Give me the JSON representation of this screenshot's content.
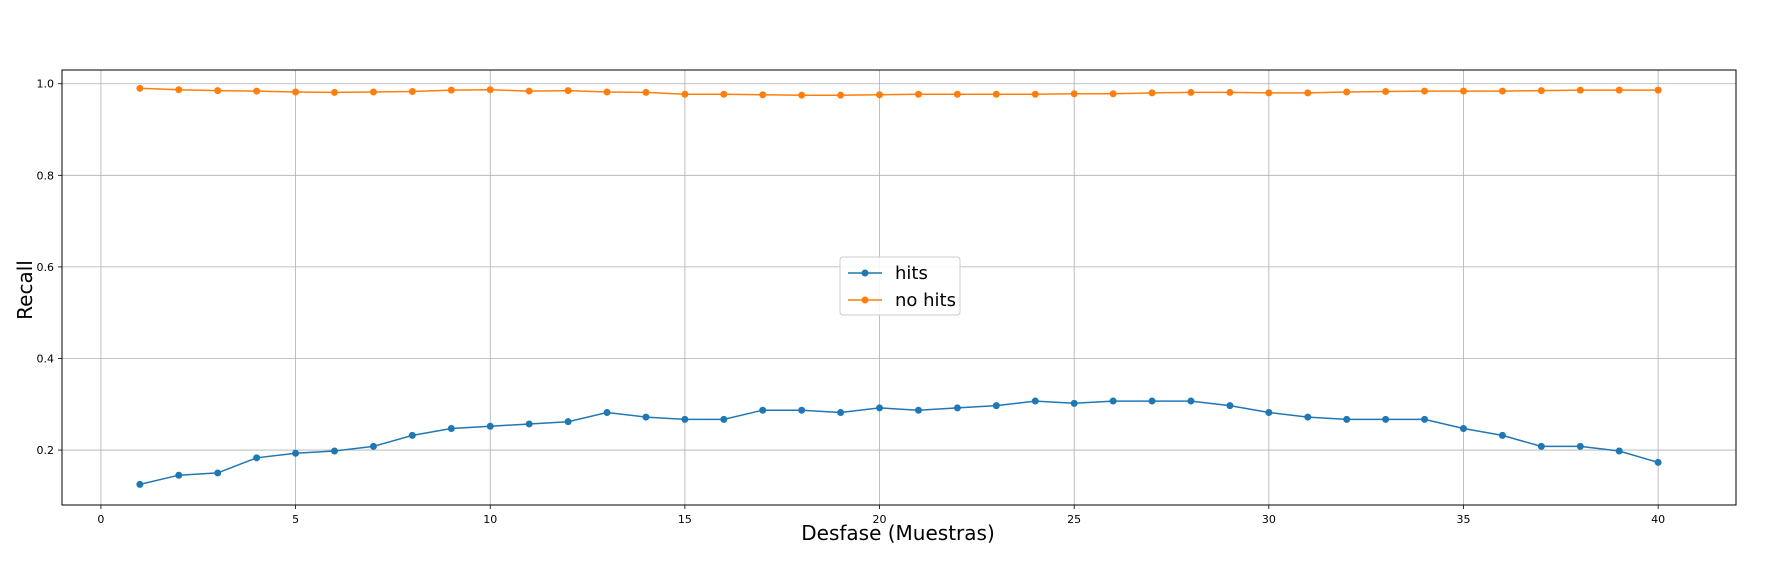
{
  "chart_data": {
    "type": "line",
    "title": "",
    "xlabel": "Desfase (Muestras)",
    "ylabel": "Recall",
    "xlim": [
      -1,
      42
    ],
    "ylim": [
      0.08,
      1.03
    ],
    "xticks": [
      0,
      5,
      10,
      15,
      20,
      25,
      30,
      35,
      40
    ],
    "yticks": [
      0.2,
      0.4,
      0.6,
      0.8,
      1.0
    ],
    "ytick_labels": [
      "0.2",
      "0.4",
      "0.6",
      "0.8",
      "1.0"
    ],
    "grid": true,
    "legend_position": "center",
    "x": [
      1,
      2,
      3,
      4,
      5,
      6,
      7,
      8,
      9,
      10,
      11,
      12,
      13,
      14,
      15,
      16,
      17,
      18,
      19,
      20,
      21,
      22,
      23,
      24,
      25,
      26,
      27,
      28,
      29,
      30,
      31,
      32,
      33,
      34,
      35,
      36,
      37,
      38,
      39,
      40
    ],
    "series": [
      {
        "name": "hits",
        "color": "#1f77b4",
        "marker": "circle",
        "values": [
          0.125,
          0.145,
          0.15,
          0.183,
          0.193,
          0.198,
          0.208,
          0.232,
          0.247,
          0.252,
          0.257,
          0.262,
          0.282,
          0.272,
          0.267,
          0.267,
          0.287,
          0.287,
          0.282,
          0.292,
          0.287,
          0.292,
          0.297,
          0.307,
          0.302,
          0.307,
          0.307,
          0.307,
          0.297,
          0.282,
          0.272,
          0.267,
          0.267,
          0.267,
          0.247,
          0.232,
          0.208,
          0.208,
          0.198,
          0.173
        ]
      },
      {
        "name": "no hits",
        "color": "#ff7f0e",
        "marker": "circle",
        "values": [
          0.99,
          0.987,
          0.985,
          0.984,
          0.982,
          0.981,
          0.982,
          0.983,
          0.986,
          0.987,
          0.984,
          0.985,
          0.982,
          0.981,
          0.977,
          0.977,
          0.976,
          0.975,
          0.975,
          0.976,
          0.977,
          0.977,
          0.977,
          0.977,
          0.978,
          0.978,
          0.98,
          0.981,
          0.981,
          0.98,
          0.98,
          0.982,
          0.983,
          0.984,
          0.984,
          0.984,
          0.985,
          0.986,
          0.986,
          0.986
        ]
      }
    ]
  }
}
